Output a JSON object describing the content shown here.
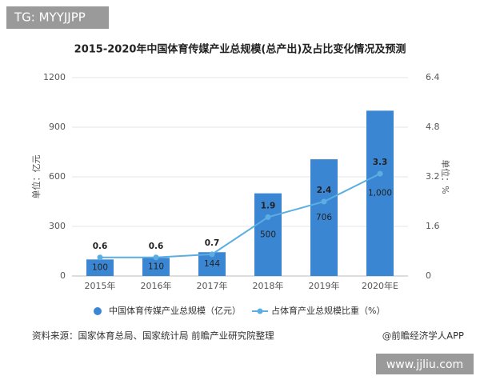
{
  "chart_data": {
    "type": "bar_line",
    "title": "2015-2020年中国体育传媒产业总规模(总产出)及占比变化情况及预测",
    "categories": [
      "2015年",
      "2016年",
      "2017年",
      "2018年",
      "2019年",
      "2020年E"
    ],
    "series": [
      {
        "name": "中国体育传媒产业总规模（亿元）",
        "color": "#3b86d3",
        "type": "bar",
        "values": [
          100,
          110,
          144,
          500,
          706,
          1000
        ],
        "value_labels": [
          "100",
          "110",
          "144",
          "500",
          "706",
          "1,000"
        ]
      },
      {
        "name": "占体育产业总规模比重（%）",
        "color": "#5aaee2",
        "type": "line",
        "axis": "y2",
        "values": [
          0.6,
          0.6,
          0.7,
          1.9,
          2.4,
          3.3
        ]
      }
    ],
    "ylabel": "单位：亿元",
    "y2label": "单位：%",
    "ylim": [
      0,
      1200
    ],
    "yticks": [
      0,
      300,
      600,
      900,
      1200
    ],
    "y2lim": [
      0,
      6.4
    ],
    "y2ticks": [
      0,
      1.6,
      3.2,
      4.8,
      6.4
    ],
    "grid": true,
    "source": "资料来源：国家体育总局、国家统计局 前瞻产业研究院整理",
    "credit": "@前瞻经济学人APP",
    "watermarks": [
      "TG: MYYJJPP",
      "www.jjliu.com"
    ]
  }
}
